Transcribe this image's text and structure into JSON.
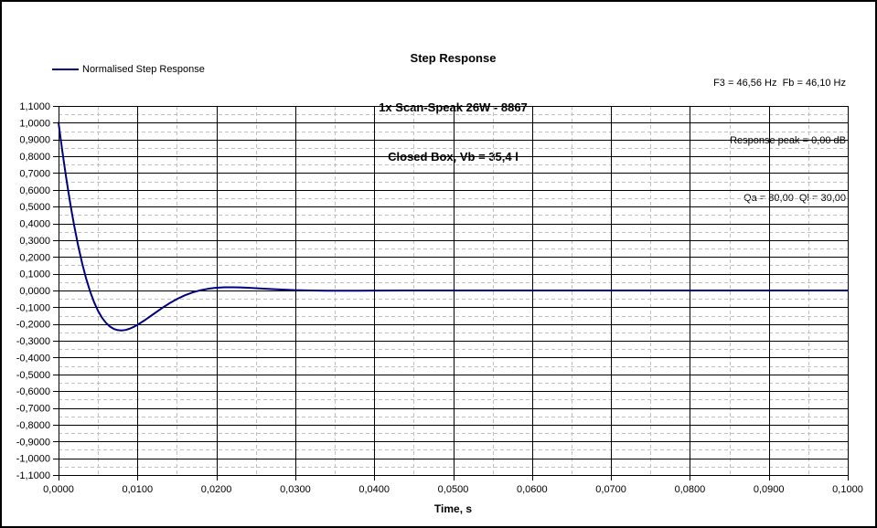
{
  "window": {
    "background": "#ffffff",
    "border_color": "#000000"
  },
  "title": {
    "line1": "Step Response",
    "line2": "1x Scan-Speak 26W - 8867",
    "line3": "Closed Box, Vb = 35,4 l"
  },
  "info": {
    "line1": "F3 = 46,56 Hz  Fb = 46,10 Hz",
    "line2": "Response peak = 0,00 dB",
    "line3": "Qa = 80,00  Ql = 30,00"
  },
  "legend": {
    "label": "Normalised Step Response",
    "line_color": "#000080"
  },
  "colors": {
    "grid_major": "#000000",
    "grid_minor": "#c0c0c0",
    "curve": "#000080",
    "text": "#000000"
  },
  "chart_data": {
    "type": "line",
    "title": "Step Response",
    "subtitle": [
      "1x Scan-Speak 26W - 8867",
      "Closed Box, Vb = 35,4 l"
    ],
    "xlabel": "Time, s",
    "ylabel": "",
    "xlim": [
      0,
      0.1
    ],
    "ylim": [
      -1.1,
      1.1
    ],
    "x_major_step": 0.01,
    "x_minor_step": 0.005,
    "y_major_step": 0.1,
    "y_minor_step": 0.05,
    "grid": true,
    "legend_position": "top-left",
    "x_tick_labels": [
      "0,0000",
      "0,0100",
      "0,0200",
      "0,0300",
      "0,0400",
      "0,0500",
      "0,0600",
      "0,0700",
      "0,0800",
      "0,0900",
      "0,1000"
    ],
    "y_tick_labels": [
      "1,1000",
      "1,0000",
      "0,9000",
      "0,8000",
      "0,7000",
      "0,6000",
      "0,5000",
      "0,4000",
      "0,3000",
      "0,2000",
      "0,1000",
      "0,0000",
      "-0,1000",
      "-0,2000",
      "-0,3000",
      "-0,4000",
      "-0,5000",
      "-0,6000",
      "-0,7000",
      "-0,8000",
      "-0,9000",
      "-1,0000",
      "-1,1000"
    ],
    "annotations": [
      "F3 = 46,56 Hz  Fb = 46,10 Hz",
      "Response peak = 0,00 dB",
      "Qa = 80,00  Ql = 30,00"
    ],
    "series": [
      {
        "name": "Normalised Step Response",
        "color": "#000080",
        "points": [
          [
            0.0,
            1.0
          ],
          [
            0.00025,
            0.911
          ],
          [
            0.0005,
            0.8252
          ],
          [
            0.00075,
            0.7425
          ],
          [
            0.001,
            0.6634
          ],
          [
            0.00125,
            0.5878
          ],
          [
            0.0015,
            0.5158
          ],
          [
            0.00175,
            0.4474
          ],
          [
            0.002,
            0.3827
          ],
          [
            0.0025,
            0.2643
          ],
          [
            0.003,
            0.1605
          ],
          [
            0.0035,
            0.071
          ],
          [
            0.004,
            -0.0054
          ],
          [
            0.0045,
            -0.0691
          ],
          [
            0.005,
            -0.121
          ],
          [
            0.0055,
            -0.1616
          ],
          [
            0.006,
            -0.1924
          ],
          [
            0.0065,
            -0.2145
          ],
          [
            0.007,
            -0.2288
          ],
          [
            0.0075,
            -0.2364
          ],
          [
            0.008,
            -0.2383
          ],
          [
            0.0085,
            -0.2352
          ],
          [
            0.009,
            -0.2281
          ],
          [
            0.0095,
            -0.2176
          ],
          [
            0.01,
            -0.2048
          ],
          [
            0.011,
            -0.1748
          ],
          [
            0.012,
            -0.1416
          ],
          [
            0.013,
            -0.1083
          ],
          [
            0.014,
            -0.0778
          ],
          [
            0.015,
            -0.0511
          ],
          [
            0.016,
            -0.0288
          ],
          [
            0.017,
            -0.0114
          ],
          [
            0.018,
            0.0016
          ],
          [
            0.019,
            0.0106
          ],
          [
            0.02,
            0.0161
          ],
          [
            0.021,
            0.0188
          ],
          [
            0.022,
            0.0194
          ],
          [
            0.023,
            0.0184
          ],
          [
            0.024,
            0.0164
          ],
          [
            0.026,
            0.0111
          ],
          [
            0.028,
            0.006
          ],
          [
            0.03,
            0.0022
          ],
          [
            0.032,
            -0.0002
          ],
          [
            0.034,
            -0.0013
          ],
          [
            0.036,
            -0.0016
          ],
          [
            0.038,
            -0.0013
          ],
          [
            0.04,
            -0.0009
          ],
          [
            0.044,
            -0.0002
          ],
          [
            0.048,
            0.0
          ],
          [
            0.05,
            0.0
          ],
          [
            0.06,
            0.0
          ],
          [
            0.07,
            0.0
          ],
          [
            0.08,
            0.0
          ],
          [
            0.09,
            0.0
          ],
          [
            0.1,
            0.0
          ]
        ]
      }
    ]
  }
}
